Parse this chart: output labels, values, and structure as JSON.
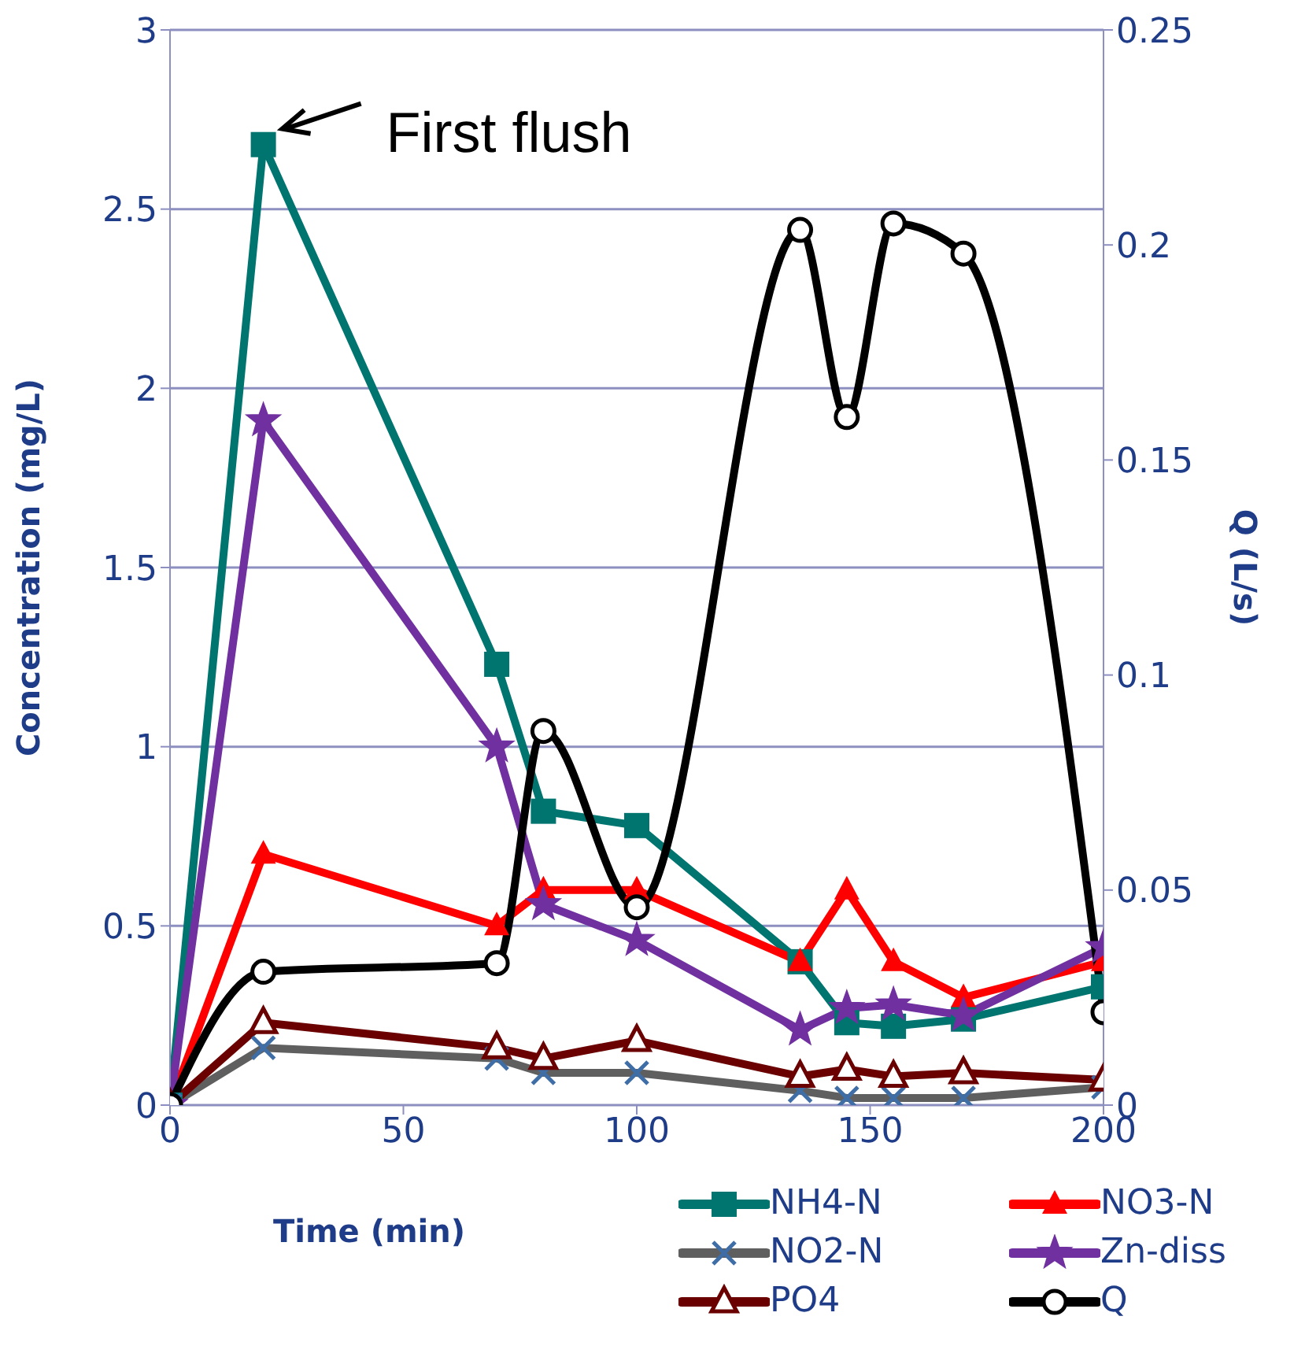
{
  "chart_data": {
    "type": "line",
    "xlabel": "Time (min)",
    "ylabel": "Concentration (mg/L)",
    "y2label": "Q (L/s)",
    "x": [
      0,
      20,
      70,
      80,
      100,
      135,
      145,
      155,
      170,
      200
    ],
    "xlim": [
      0,
      200
    ],
    "xticks": [
      0,
      50,
      100,
      150,
      200
    ],
    "ylim": [
      0,
      3
    ],
    "yticks": [
      0,
      0.5,
      1,
      1.5,
      2,
      2.5,
      3
    ],
    "y2lim": [
      0,
      0.25
    ],
    "y2ticks": [
      0,
      0.05,
      0.1,
      0.15,
      0.2,
      0.25
    ],
    "grid": "y",
    "legend": "bottom",
    "annotations": [
      {
        "text": "First flush",
        "x": 20,
        "y": 2.68
      }
    ],
    "series": [
      {
        "name": "NH4-N",
        "color": "#007570",
        "marker": "square",
        "values": [
          0,
          2.68,
          1.23,
          0.82,
          0.78,
          0.4,
          0.23,
          0.22,
          0.24,
          0.33
        ]
      },
      {
        "name": "NO3-N",
        "color": "#ff0000",
        "marker": "triangle",
        "values": [
          0,
          0.7,
          0.5,
          0.6,
          0.6,
          0.4,
          0.6,
          0.4,
          0.3,
          0.4
        ]
      },
      {
        "name": "NO2-N",
        "color": "#5f5f5f",
        "marker": "cross",
        "values": [
          0,
          0.16,
          0.13,
          0.09,
          0.09,
          0.04,
          0.02,
          0.02,
          0.02,
          0.05
        ]
      },
      {
        "name": "Zn-diss",
        "color": "#7030a0",
        "marker": "star",
        "values": [
          0,
          1.91,
          1,
          0.56,
          0.46,
          0.21,
          0.27,
          0.28,
          0.25,
          0.44
        ]
      },
      {
        "name": "PO4",
        "color": "#6b0000",
        "marker": "triangle",
        "values": [
          0,
          0.23,
          0.16,
          0.13,
          0.18,
          0.08,
          0.1,
          0.08,
          0.09,
          0.07
        ]
      },
      {
        "name": "Q",
        "color": "#000000",
        "marker": "circle",
        "axis": "y2",
        "values": [
          0,
          0.031,
          0.033,
          0.087,
          0.046,
          0.2035,
          0.16,
          0.205,
          0.198,
          0.0216
        ]
      }
    ]
  }
}
